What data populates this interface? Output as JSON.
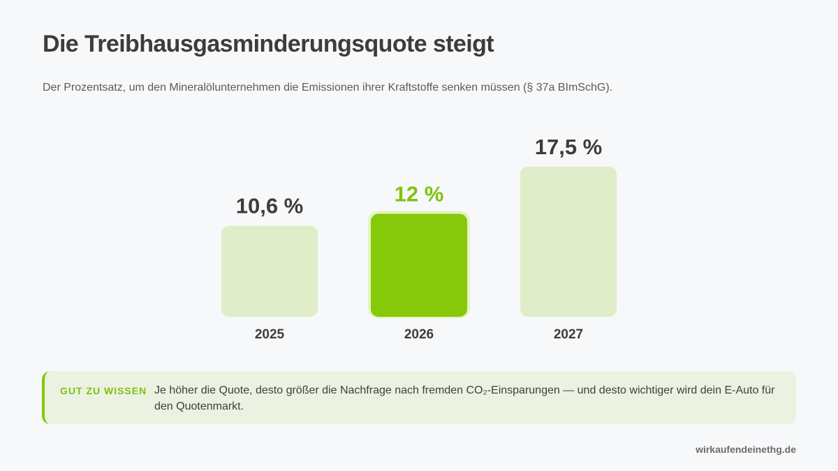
{
  "title": "Die Treibhausgasminderungsquote steigt",
  "subtitle": "Der Prozentsatz, um den Mineralölunternehmen die Emissionen ihrer Kraftstoffe senken müssen (§ 37a BImSchG).",
  "colors": {
    "accent": "#86c80a",
    "accent_text": "#7ec20f",
    "bar_light": "#dfedc9",
    "bar_glow": "#e4f4bf",
    "text_dark": "#3c3c3c",
    "background": "#f7f8fa",
    "info_background": "#ebf2e2"
  },
  "chart_data": {
    "type": "bar",
    "categories": [
      "2025",
      "2026",
      "2027"
    ],
    "values": [
      10.6,
      12,
      17.5
    ],
    "data_labels": [
      "10,6 %",
      "12 %",
      "17,5 %"
    ],
    "highlighted_category": "2026",
    "title": "Die Treibhausgasminderungsquote steigt",
    "xlabel": "",
    "ylabel": "",
    "grid": false,
    "legend": "none"
  },
  "info": {
    "label": "GUT ZU WISSEN",
    "text": "Je höher die Quote, desto größer die Nachfrage nach fremden CO₂-Einsparungen — und desto wichtiger wird dein E-Auto für den Quotenmarkt."
  },
  "source": "wirkaufendeinethg.de"
}
